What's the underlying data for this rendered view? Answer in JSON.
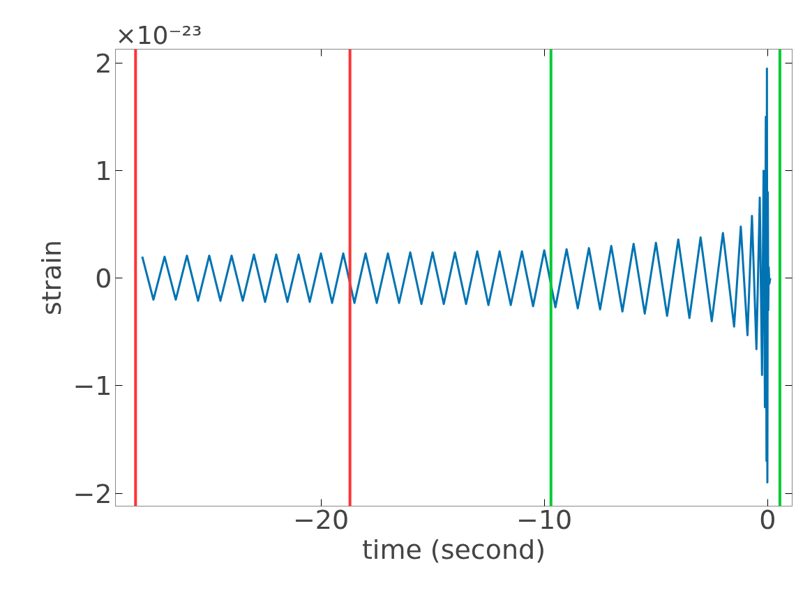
{
  "chart_data": {
    "type": "line",
    "xlabel": "time (second)",
    "ylabel": "strain",
    "annotations": [
      "×10⁻²³"
    ],
    "xlim": [
      -29.2,
      1.1
    ],
    "xticks": [
      {
        "value": -20,
        "label": "−20"
      },
      {
        "value": -10,
        "label": "−10"
      },
      0
    ],
    "ylim": [
      -2.12,
      2.13
    ],
    "yticks": [
      {
        "value": -2,
        "label": "−2"
      },
      {
        "value": -1,
        "label": "−1"
      },
      0,
      1,
      2
    ],
    "grid": false,
    "marker": "none",
    "line_style": "solid",
    "series": [
      {
        "color": "#0173b2",
        "x": [
          -28,
          -27.5,
          -27,
          -26.5,
          -26,
          -25.5,
          -25,
          -24.5,
          -24,
          -23.5,
          -23,
          -22.5,
          -22,
          -21.5,
          -21,
          -20.5,
          -20,
          -19.5,
          -19,
          -18.5,
          -18,
          -17.5,
          -17,
          -16.5,
          -16,
          -15.5,
          -15,
          -14.5,
          -14,
          -13.5,
          -13,
          -12.5,
          -12,
          -11.5,
          -11,
          -10.5,
          -10,
          -9.5,
          -9,
          -8.5,
          -8,
          -7.5,
          -7,
          -6.5,
          -6,
          -5.5,
          -5,
          -4.5,
          -4,
          -3.5,
          -3,
          -2.5,
          -2,
          -1.5,
          -1.2,
          -0.9,
          -0.7,
          -0.5,
          -0.35,
          -0.25,
          -0.18,
          -0.12,
          -0.08,
          -0.05,
          -0.03,
          -0.01,
          0.01,
          0.03,
          0.05,
          0.08,
          0.12
        ],
        "values": [
          0.2,
          -0.2,
          0.2,
          -0.2,
          0.21,
          -0.21,
          0.21,
          -0.21,
          0.21,
          -0.21,
          0.22,
          -0.22,
          0.22,
          -0.22,
          0.22,
          -0.22,
          0.23,
          -0.23,
          0.23,
          -0.23,
          0.23,
          -0.23,
          0.23,
          -0.23,
          0.24,
          -0.24,
          0.24,
          -0.24,
          0.24,
          -0.24,
          0.25,
          -0.25,
          0.25,
          -0.25,
          0.25,
          -0.26,
          0.26,
          -0.27,
          0.27,
          -0.28,
          0.28,
          -0.29,
          0.3,
          -0.31,
          0.32,
          -0.33,
          0.33,
          -0.35,
          0.36,
          -0.37,
          0.38,
          -0.4,
          0.42,
          -0.45,
          0.48,
          -0.53,
          0.58,
          -0.66,
          0.75,
          -0.9,
          1.0,
          -1.2,
          1.5,
          -1.7,
          1.95,
          -1.9,
          0.8,
          -0.3,
          0.1,
          -0.05,
          0.0
        ]
      }
    ],
    "ref_lines": [
      {
        "axis": "x",
        "value": -28.3,
        "color": "#ff3333"
      },
      {
        "axis": "x",
        "value": -18.7,
        "color": "#ff3333"
      },
      {
        "axis": "x",
        "value": -9.7,
        "color": "#00cc33"
      },
      {
        "axis": "x",
        "value": 0.55,
        "color": "#00cc33"
      }
    ]
  }
}
